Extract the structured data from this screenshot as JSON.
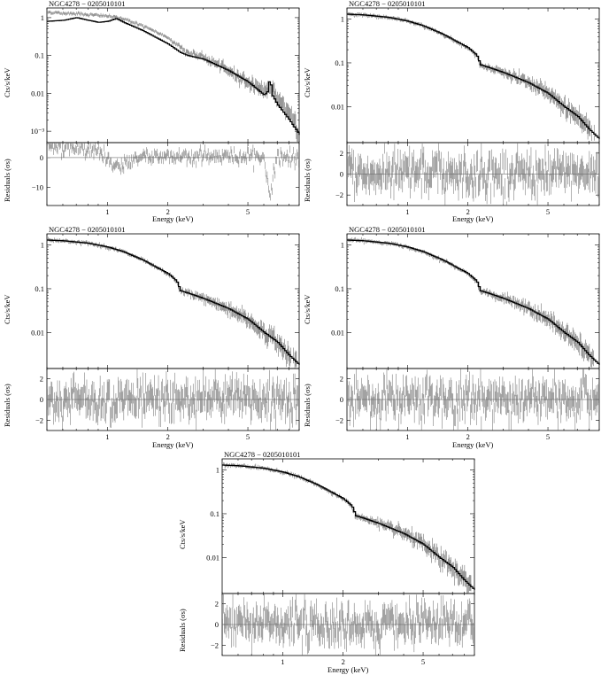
{
  "figure": {
    "panels": [
      {
        "id": "top-left",
        "title": "NGC4278 − 0205010101",
        "upper_ylabel": "Cts/s/keV",
        "lower_ylabel": "Residuals (σs)",
        "xlabel": "Energy (keV)",
        "xticks": [
          "1",
          "2",
          "5"
        ],
        "upper_yticks": [
          "1",
          "0.1",
          "0.01",
          "10⁻³"
        ],
        "lower_yticks": [
          "0",
          "−10"
        ]
      },
      {
        "id": "top-right",
        "title": "NGC4278 − 0205010101",
        "upper_ylabel": "Cts/s/keV",
        "lower_ylabel": "Residuals (σs)",
        "xlabel": "Energy (keV)",
        "xticks": [
          "1",
          "2",
          "5"
        ],
        "upper_yticks": [
          "1",
          "0.1",
          "0.01"
        ],
        "lower_yticks": [
          "2",
          "0",
          "−2"
        ]
      },
      {
        "id": "middle-left",
        "title": "NGC4278 − 0205010101",
        "upper_ylabel": "Cts/s/keV",
        "lower_ylabel": "Residuals (σs)",
        "xlabel": "Energy (keV)",
        "xticks": [
          "1",
          "2",
          "5"
        ],
        "upper_yticks": [
          "1",
          "0.1",
          "0.01"
        ],
        "lower_yticks": [
          "2",
          "0",
          "−2"
        ]
      },
      {
        "id": "middle-right",
        "title": "NGC4278 − 0205010101",
        "upper_ylabel": "Cts/s/keV",
        "lower_ylabel": "Residuals (σs)",
        "xlabel": "Energy (keV)",
        "xticks": [
          "1",
          "2",
          "5"
        ],
        "upper_yticks": [
          "1",
          "0.1",
          "0.01"
        ],
        "lower_yticks": [
          "2",
          "0",
          "−2"
        ]
      },
      {
        "id": "bottom-center",
        "title": "NGC4278 − 0205010101",
        "upper_ylabel": "Cts/s/keV",
        "lower_ylabel": "Residuals (σs)",
        "xlabel": "Energy (keV)",
        "xticks": [
          "1",
          "2",
          "5"
        ],
        "upper_yticks": [
          "1",
          "0.1",
          "0.01"
        ],
        "lower_yticks": [
          "2",
          "0",
          "−2"
        ]
      }
    ]
  },
  "chart_data": [
    {
      "type": "scatter",
      "panel": "top-left",
      "title": "NGC4278 − 0205010101",
      "xlabel": "Energy (keV)",
      "ylabel": "Cts/s/keV",
      "xscale": "log",
      "yscale": "log",
      "xlim": [
        0.5,
        9.0
      ],
      "ylim": [
        0.0005,
        1.8
      ],
      "series": [
        {
          "kind": "data",
          "x": [
            0.5,
            0.6,
            0.7,
            0.8,
            1.0,
            1.2,
            1.5,
            2.0,
            2.5,
            3.0,
            4.0,
            5.0,
            6.0,
            6.4,
            7.0,
            8.0,
            9.0
          ],
          "y": [
            1.4,
            1.3,
            1.3,
            1.2,
            1.1,
            0.95,
            0.6,
            0.3,
            0.12,
            0.09,
            0.04,
            0.02,
            0.012,
            0.015,
            0.008,
            0.003,
            0.0008
          ]
        },
        {
          "kind": "model",
          "x": [
            0.5,
            0.6,
            0.7,
            0.8,
            0.9,
            1.0,
            1.1,
            1.2,
            1.5,
            2.0,
            2.3,
            2.5,
            3.0,
            4.0,
            5.0,
            6.0,
            6.3,
            6.4,
            6.5,
            7.0,
            8.0,
            9.0
          ],
          "y": [
            0.8,
            0.85,
            1.0,
            0.85,
            0.75,
            0.8,
            0.95,
            0.75,
            0.45,
            0.2,
            0.12,
            0.1,
            0.08,
            0.04,
            0.02,
            0.009,
            0.012,
            0.05,
            0.01,
            0.005,
            0.002,
            0.0008
          ]
        }
      ],
      "residuals": {
        "ylim": [
          -16,
          5
        ],
        "x": [
          0.5,
          0.7,
          0.9,
          1.05,
          1.15,
          1.3,
          1.5,
          2.0,
          3.0,
          4.0,
          5.0,
          6.0,
          6.4,
          7.0,
          8.0
        ],
        "y": [
          4,
          3,
          2,
          -2,
          -4,
          -1,
          0.5,
          0.5,
          0.5,
          0.5,
          0.5,
          0,
          -12,
          0,
          0
        ]
      },
      "grid": false
    },
    {
      "type": "scatter",
      "panel": "top-right",
      "title": "NGC4278 − 0205010101",
      "xlabel": "Energy (keV)",
      "ylabel": "Cts/s/keV",
      "xscale": "log",
      "yscale": "log",
      "xlim": [
        0.5,
        9.0
      ],
      "ylim": [
        0.0015,
        1.8
      ],
      "series": [
        {
          "kind": "model",
          "x": [
            0.5,
            0.6,
            0.8,
            1.0,
            1.2,
            1.5,
            2.0,
            2.2,
            2.3,
            2.5,
            3.0,
            4.0,
            5.0,
            6.0,
            7.0,
            8.0,
            9.0
          ],
          "y": [
            1.3,
            1.25,
            1.1,
            0.9,
            0.7,
            0.45,
            0.22,
            0.15,
            0.09,
            0.08,
            0.06,
            0.035,
            0.02,
            0.01,
            0.006,
            0.003,
            0.0018
          ]
        }
      ],
      "residuals": {
        "ylim": [
          -3,
          3
        ],
        "spread": 2
      },
      "grid": false
    },
    {
      "type": "scatter",
      "panel": "middle-left",
      "title": "NGC4278 − 0205010101",
      "xlabel": "Energy (keV)",
      "ylabel": "Cts/s/keV",
      "xscale": "log",
      "yscale": "log",
      "xlim": [
        0.5,
        9.0
      ],
      "ylim": [
        0.0015,
        1.8
      ],
      "series": [
        {
          "kind": "model",
          "x": [
            0.5,
            0.6,
            0.8,
            1.0,
            1.2,
            1.5,
            2.0,
            2.2,
            2.3,
            2.5,
            3.0,
            4.0,
            5.0,
            6.0,
            7.0,
            8.0,
            9.0
          ],
          "y": [
            1.3,
            1.25,
            1.1,
            0.9,
            0.7,
            0.45,
            0.22,
            0.15,
            0.09,
            0.08,
            0.06,
            0.035,
            0.02,
            0.01,
            0.006,
            0.003,
            0.0018
          ]
        }
      ],
      "residuals": {
        "ylim": [
          -3,
          3
        ],
        "spread": 2
      },
      "grid": false
    },
    {
      "type": "scatter",
      "panel": "middle-right",
      "title": "NGC4278 − 0205010101",
      "xlabel": "Energy (keV)",
      "ylabel": "Cts/s/keV",
      "xscale": "log",
      "yscale": "log",
      "xlim": [
        0.5,
        9.0
      ],
      "ylim": [
        0.0015,
        1.8
      ],
      "series": [
        {
          "kind": "model",
          "x": [
            0.5,
            0.6,
            0.8,
            1.0,
            1.2,
            1.5,
            2.0,
            2.2,
            2.3,
            2.5,
            3.0,
            4.0,
            5.0,
            6.0,
            7.0,
            8.0,
            9.0
          ],
          "y": [
            1.3,
            1.25,
            1.1,
            0.9,
            0.7,
            0.45,
            0.22,
            0.15,
            0.09,
            0.08,
            0.06,
            0.035,
            0.02,
            0.01,
            0.006,
            0.003,
            0.0018
          ]
        }
      ],
      "residuals": {
        "ylim": [
          -3,
          3
        ],
        "spread": 2
      },
      "grid": false
    },
    {
      "type": "scatter",
      "panel": "bottom-center",
      "title": "NGC4278 − 0205010101",
      "xlabel": "Energy (keV)",
      "ylabel": "Cts/s/keV",
      "xscale": "log",
      "yscale": "log",
      "xlim": [
        0.5,
        9.0
      ],
      "ylim": [
        0.0015,
        1.8
      ],
      "series": [
        {
          "kind": "model",
          "x": [
            0.5,
            0.6,
            0.8,
            1.0,
            1.2,
            1.5,
            2.0,
            2.2,
            2.3,
            2.5,
            3.0,
            4.0,
            5.0,
            6.0,
            7.0,
            8.0,
            9.0
          ],
          "y": [
            1.3,
            1.25,
            1.1,
            0.9,
            0.7,
            0.45,
            0.22,
            0.15,
            0.09,
            0.08,
            0.06,
            0.035,
            0.02,
            0.01,
            0.006,
            0.003,
            0.0018
          ]
        }
      ],
      "residuals": {
        "ylim": [
          -3,
          3
        ],
        "spread": 2
      },
      "grid": false
    }
  ]
}
